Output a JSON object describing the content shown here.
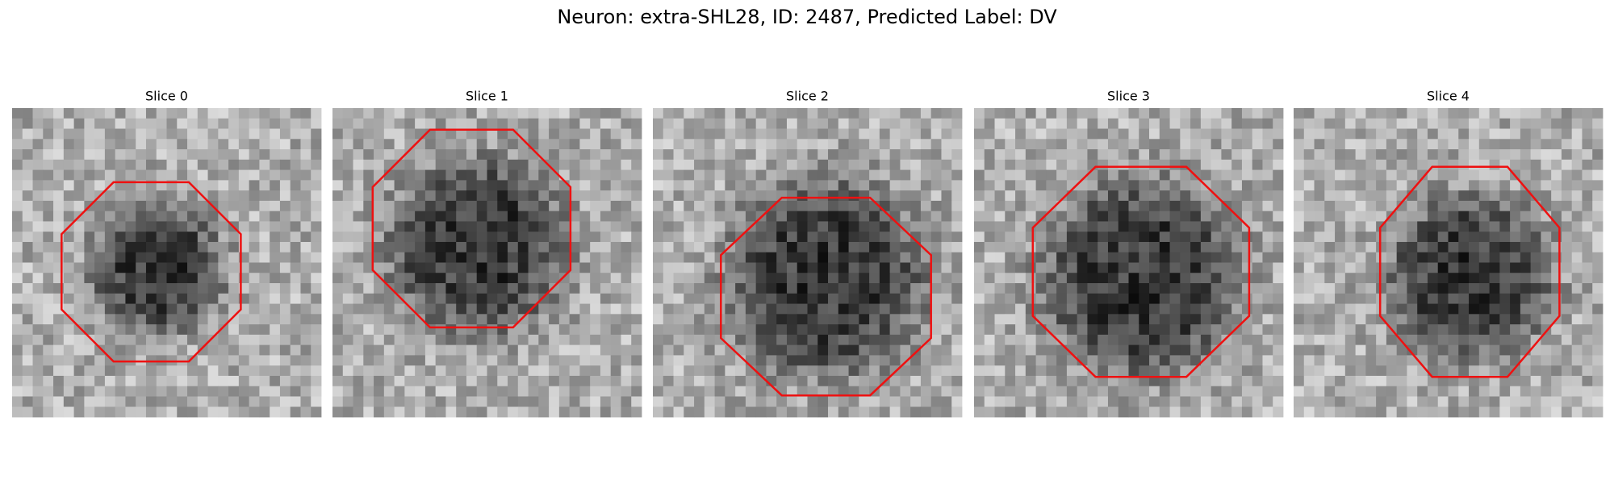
{
  "title": "Neuron: extra-SHL28, ID: 2487, Predicted Label: DV",
  "panels": [
    {
      "title": "Slice 0"
    },
    {
      "title": "Slice 1"
    },
    {
      "title": "Slice 2"
    },
    {
      "title": "Slice 3"
    },
    {
      "title": "Slice 4"
    }
  ]
}
